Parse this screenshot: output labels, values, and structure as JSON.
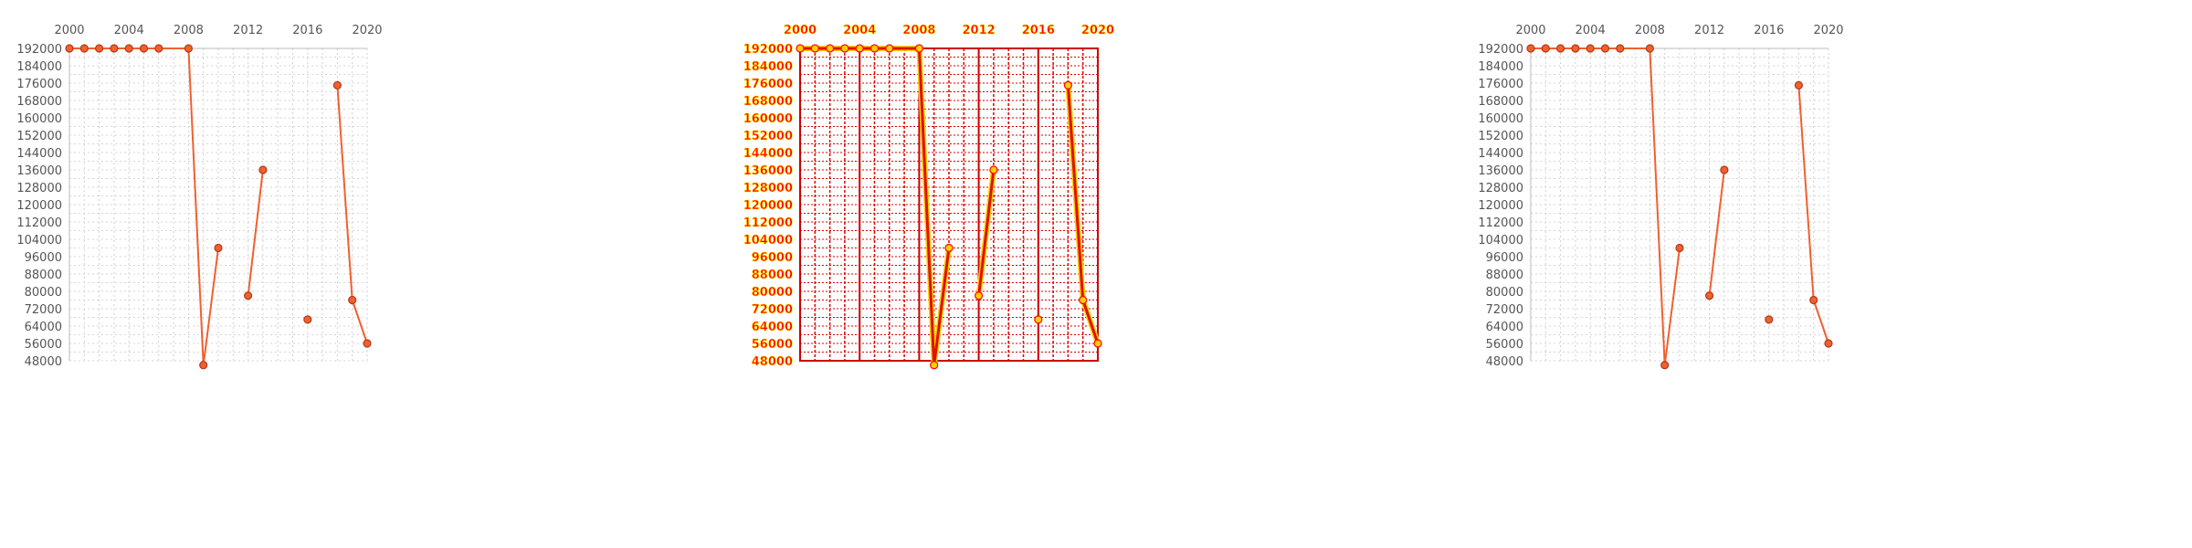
{
  "chart_data": [
    {
      "type": "line",
      "style": "normal",
      "x_ticks": [
        "2000",
        "2004",
        "2008",
        "2012",
        "2016",
        "2020"
      ],
      "y_ticks": [
        "192000",
        "184000",
        "176000",
        "168000",
        "160000",
        "152000",
        "144000",
        "136000",
        "128000",
        "120000",
        "112000",
        "104000",
        "96000",
        "88000",
        "80000",
        "72000",
        "64000",
        "56000",
        "48000"
      ],
      "xlim": [
        2000,
        2020
      ],
      "ylim": [
        48000,
        192000
      ],
      "x_axis_position": "top",
      "grid": true,
      "series": [
        {
          "line_color": "#f06030",
          "marker_color": "#f06030",
          "points": [
            {
              "x": 2000,
              "y": 192000
            },
            {
              "x": 2001,
              "y": 192000
            },
            {
              "x": 2002,
              "y": 192000
            },
            {
              "x": 2003,
              "y": 192000
            },
            {
              "x": 2004,
              "y": 192000
            },
            {
              "x": 2005,
              "y": 192000
            },
            {
              "x": 2006,
              "y": 192000
            },
            {
              "x": 2008,
              "y": 192000
            },
            {
              "x": 2009,
              "y": 46000
            },
            {
              "x": 2010,
              "y": 100000
            },
            null,
            {
              "x": 2012,
              "y": 78000
            },
            {
              "x": 2013,
              "y": 136000
            },
            null,
            {
              "x": 2016,
              "y": 67000
            },
            null,
            {
              "x": 2018,
              "y": 175000
            },
            {
              "x": 2019,
              "y": 76000
            },
            {
              "x": 2020,
              "y": 56000
            }
          ]
        }
      ]
    },
    {
      "type": "line",
      "style": "highlight",
      "x_ticks": [
        "2000",
        "2004",
        "2008",
        "2012",
        "2016",
        "2020"
      ],
      "y_ticks": [
        "192000",
        "184000",
        "176000",
        "168000",
        "160000",
        "152000",
        "144000",
        "136000",
        "128000",
        "120000",
        "112000",
        "104000",
        "96000",
        "88000",
        "80000",
        "72000",
        "64000",
        "56000",
        "48000"
      ],
      "xlim": [
        2000,
        2020
      ],
      "ylim": [
        48000,
        192000
      ],
      "x_axis_position": "top",
      "grid": true,
      "series": [
        {
          "line_color": "#e02000",
          "marker_color": "#ff0000",
          "points": [
            {
              "x": 2000,
              "y": 192000
            },
            {
              "x": 2001,
              "y": 192000
            },
            {
              "x": 2002,
              "y": 192000
            },
            {
              "x": 2003,
              "y": 192000
            },
            {
              "x": 2004,
              "y": 192000
            },
            {
              "x": 2005,
              "y": 192000
            },
            {
              "x": 2006,
              "y": 192000
            },
            {
              "x": 2008,
              "y": 192000
            },
            {
              "x": 2009,
              "y": 46000
            },
            {
              "x": 2010,
              "y": 100000
            },
            null,
            {
              "x": 2012,
              "y": 78000
            },
            {
              "x": 2013,
              "y": 136000
            },
            null,
            {
              "x": 2016,
              "y": 67000
            },
            null,
            {
              "x": 2018,
              "y": 175000
            },
            {
              "x": 2019,
              "y": 76000
            },
            {
              "x": 2020,
              "y": 56000
            }
          ]
        }
      ]
    },
    {
      "type": "line",
      "style": "normal",
      "x_ticks": [
        "2000",
        "2004",
        "2008",
        "2012",
        "2016",
        "2020"
      ],
      "y_ticks": [
        "192000",
        "184000",
        "176000",
        "168000",
        "160000",
        "152000",
        "144000",
        "136000",
        "128000",
        "120000",
        "112000",
        "104000",
        "96000",
        "88000",
        "80000",
        "72000",
        "64000",
        "56000",
        "48000"
      ],
      "xlim": [
        2000,
        2020
      ],
      "ylim": [
        48000,
        192000
      ],
      "x_axis_position": "top",
      "grid": true,
      "series": [
        {
          "line_color": "#f06030",
          "marker_color": "#f06030",
          "points": [
            {
              "x": 2000,
              "y": 192000
            },
            {
              "x": 2001,
              "y": 192000
            },
            {
              "x": 2002,
              "y": 192000
            },
            {
              "x": 2003,
              "y": 192000
            },
            {
              "x": 2004,
              "y": 192000
            },
            {
              "x": 2005,
              "y": 192000
            },
            {
              "x": 2006,
              "y": 192000
            },
            {
              "x": 2008,
              "y": 192000
            },
            {
              "x": 2009,
              "y": 46000
            },
            {
              "x": 2010,
              "y": 100000
            },
            null,
            {
              "x": 2012,
              "y": 78000
            },
            {
              "x": 2013,
              "y": 136000
            },
            null,
            {
              "x": 2016,
              "y": 67000
            },
            null,
            {
              "x": 2018,
              "y": 175000
            },
            {
              "x": 2019,
              "y": 76000
            },
            {
              "x": 2020,
              "y": 56000
            }
          ]
        }
      ]
    }
  ]
}
